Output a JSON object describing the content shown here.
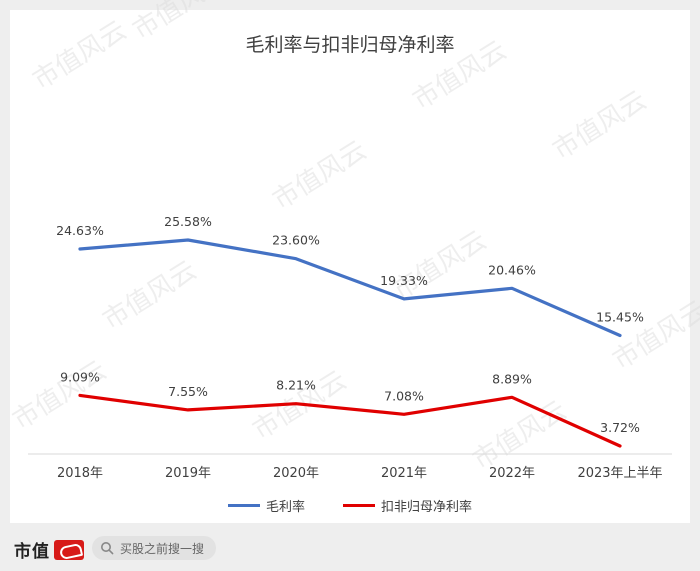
{
  "chart_data": {
    "type": "line",
    "title": "毛利率与扣非归母净利率",
    "categories": [
      "2018年",
      "2019年",
      "2020年",
      "2021年",
      "2022年",
      "2023年上半年"
    ],
    "series": [
      {
        "name": "毛利率",
        "color": "#4472c4",
        "values": [
          24.63,
          25.58,
          23.6,
          19.33,
          20.46,
          15.45
        ],
        "labels": [
          "24.63%",
          "25.58%",
          "23.60%",
          "19.33%",
          "20.46%",
          "15.45%"
        ]
      },
      {
        "name": "扣非归母净利率",
        "color": "#e00000",
        "values": [
          9.09,
          7.55,
          8.21,
          7.08,
          8.89,
          3.72
        ],
        "labels": [
          "9.09%",
          "7.55%",
          "8.21%",
          "7.08%",
          "8.89%",
          "3.72%"
        ]
      }
    ],
    "legend_position": "bottom",
    "grid": false,
    "y_axis_visible": false
  },
  "watermark": "市值风云",
  "footer": {
    "brand_text": "市值",
    "search_text": "买股之前搜一搜"
  }
}
